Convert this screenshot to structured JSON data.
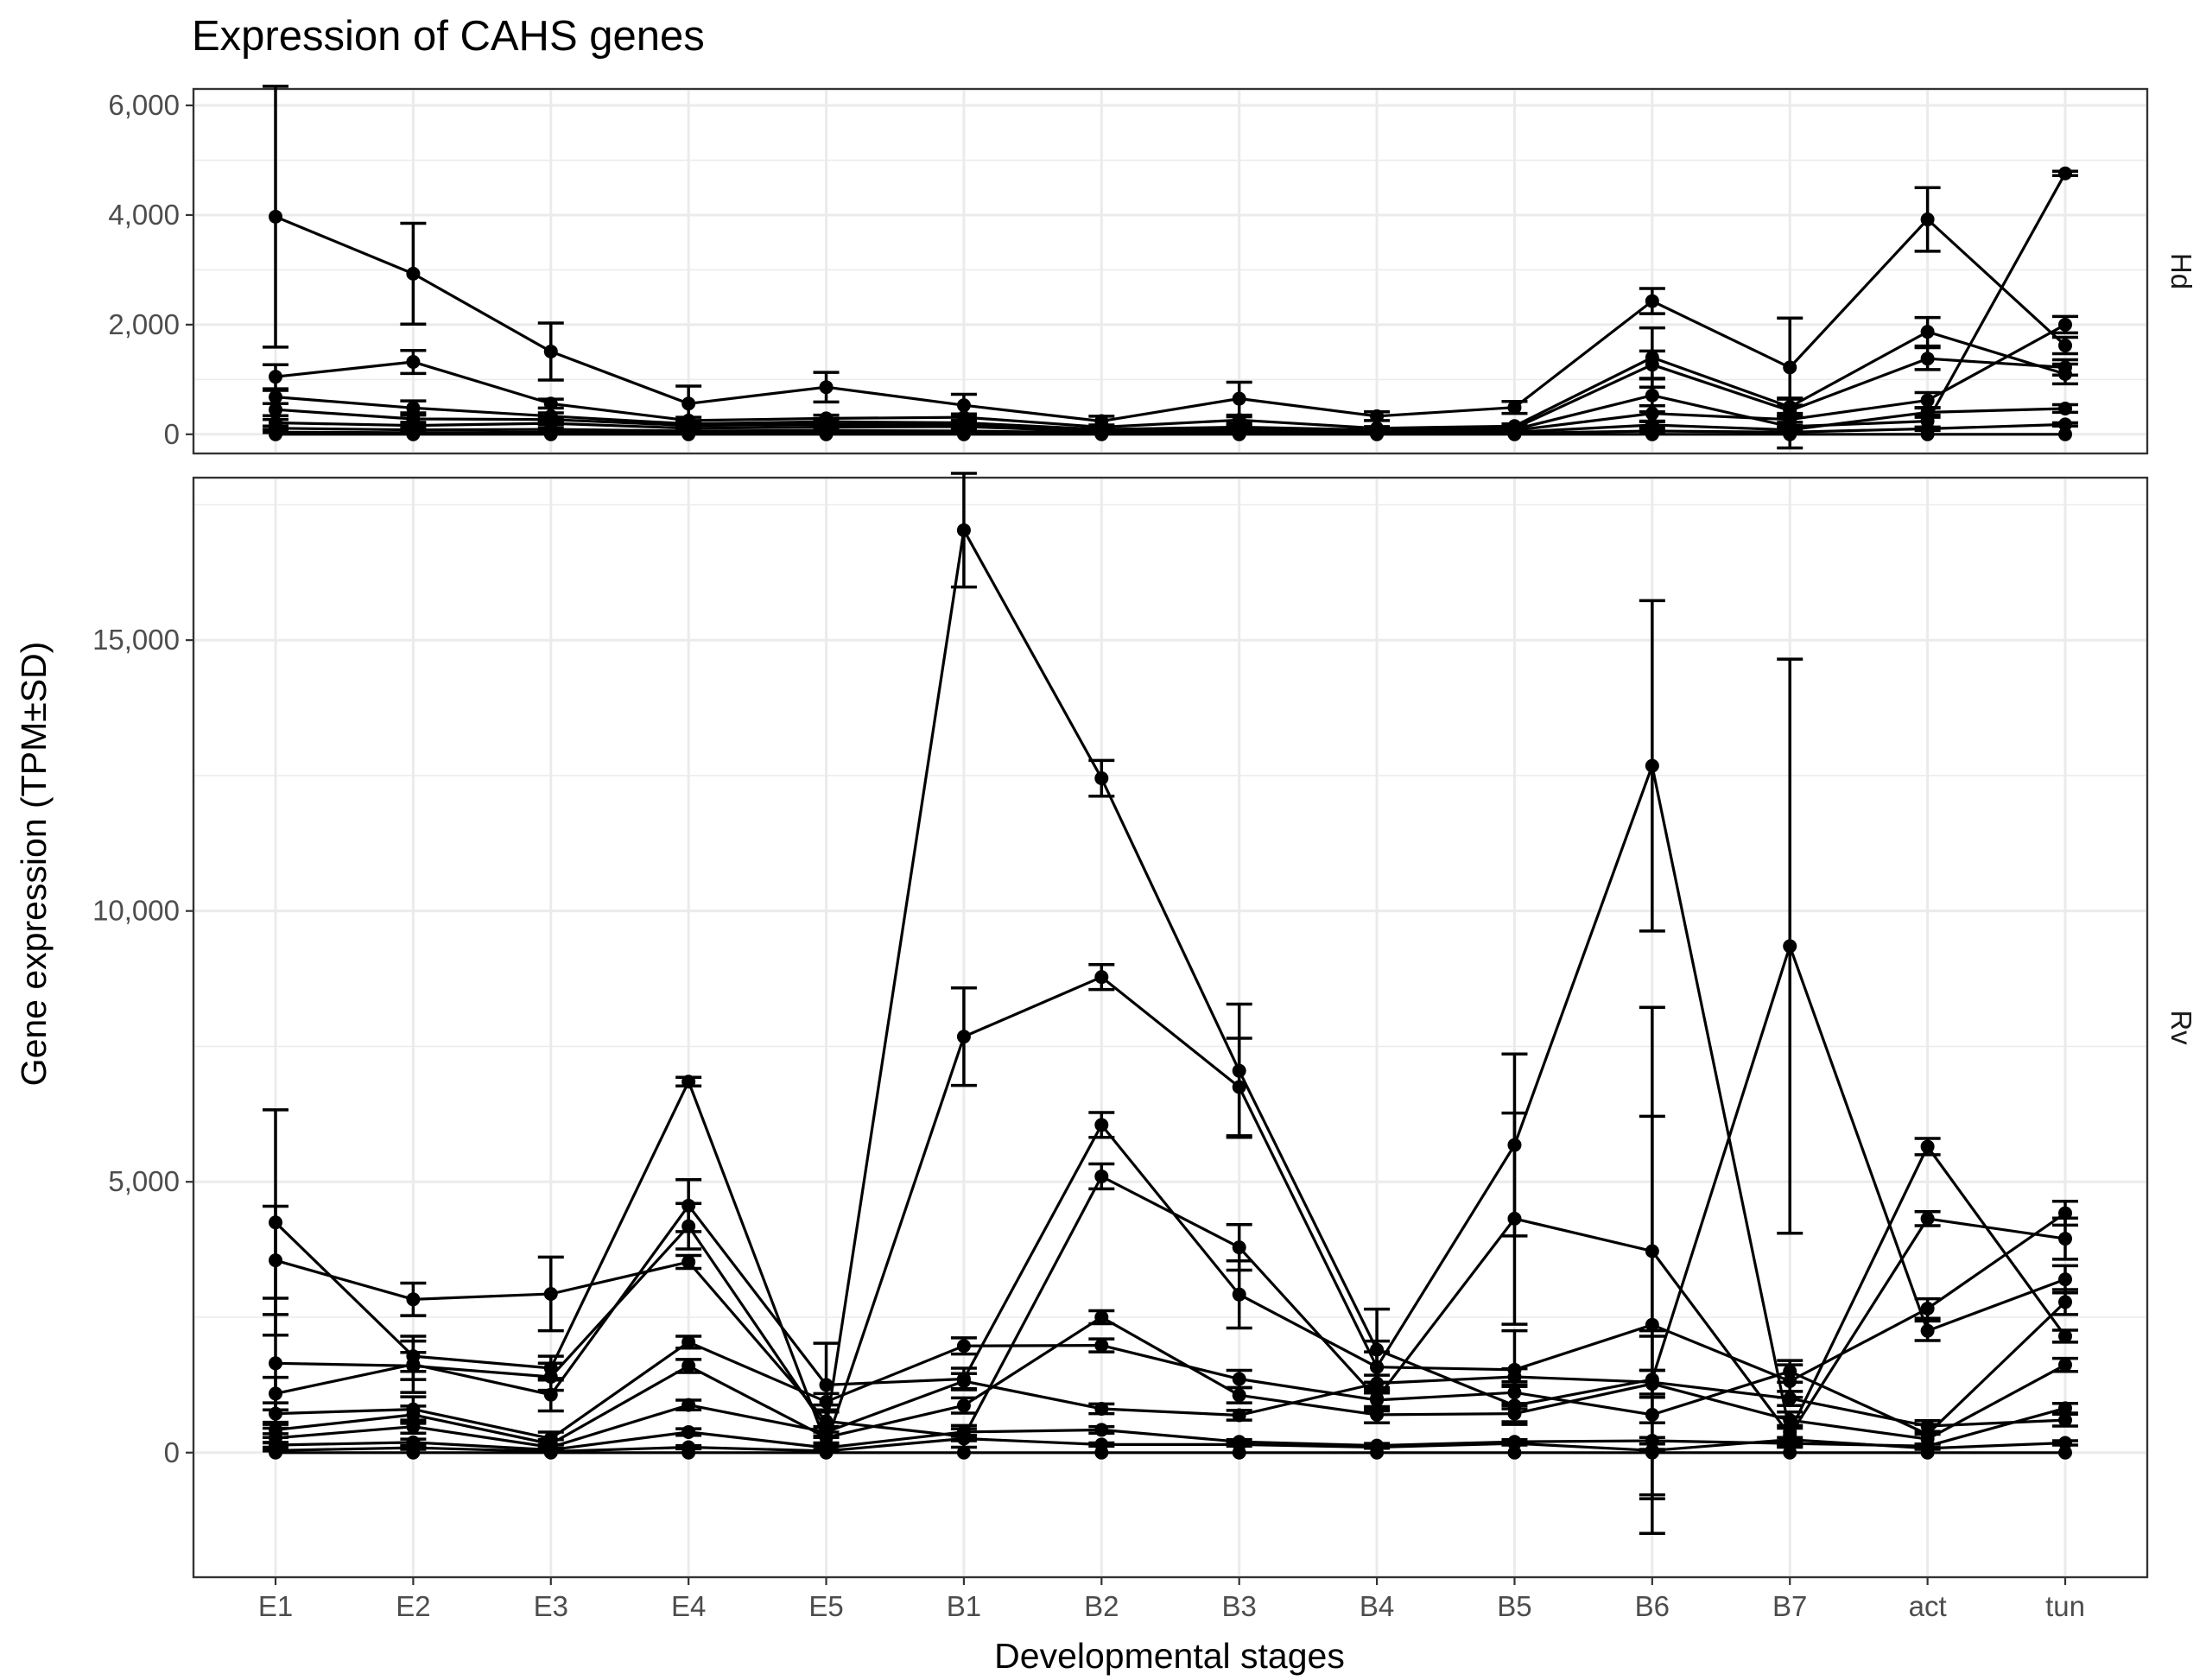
{
  "chart_data": {
    "type": "line",
    "title": "Expression of CAHS genes",
    "xlabel": "Developmental stages",
    "ylabel": "Gene expression (TPM±SD)",
    "categories": [
      "E1",
      "E2",
      "E3",
      "E4",
      "E5",
      "B1",
      "B2",
      "B3",
      "B4",
      "B5",
      "B6",
      "B7",
      "act",
      "tun"
    ],
    "grid": true,
    "legend": "none",
    "facets": [
      {
        "id": "hd",
        "label": "Hd",
        "ylim": [
          -350,
          6300
        ],
        "yticks": [
          0,
          2000,
          4000,
          6000
        ],
        "ytick_labels": [
          "0",
          "2,000",
          "4,000",
          "6,000"
        ],
        "series": [
          {
            "values": [
              3970,
              2930,
              1510,
              560,
              860,
              530,
              240,
              650,
              330,
              490,
              2430,
              1220,
              3920,
              1620
            ],
            "sd": [
              2380,
              920,
              520,
              320,
              270,
              200,
              90,
              300,
              80,
              110,
              230,
              900,
              580,
              150
            ]
          },
          {
            "values": [
              1050,
              1320,
              560,
              250,
              290,
              310,
              130,
              260,
              110,
              150,
              1400,
              500,
              1870,
              1100
            ],
            "sd": [
              220,
              210,
              80,
              60,
              60,
              60,
              40,
              60,
              30,
              40,
              540,
              160,
              260,
              180
            ]
          },
          {
            "values": [
              680,
              480,
              330,
              190,
              230,
              210,
              90,
              130,
              80,
              110,
              1270,
              430,
              1380,
              1220
            ],
            "sd": [
              120,
              130,
              60,
              40,
              50,
              40,
              30,
              40,
              20,
              30,
              250,
              210,
              200,
              140
            ]
          },
          {
            "values": [
              450,
              280,
              270,
              160,
              180,
              170,
              70,
              110,
              60,
              90,
              710,
              140,
              240,
              4760
            ],
            "sd": [
              110,
              110,
              40,
              30,
              40,
              40,
              20,
              40,
              20,
              30,
              300,
              390,
              110,
              40
            ]
          },
          {
            "values": [
              210,
              160,
              200,
              110,
              130,
              140,
              50,
              80,
              50,
              70,
              380,
              270,
              620,
              2000
            ],
            "sd": [
              60,
              60,
              30,
              30,
              30,
              30,
              20,
              30,
              20,
              20,
              140,
              110,
              140,
              150
            ]
          },
          {
            "values": [
              110,
              80,
              90,
              60,
              70,
              60,
              30,
              40,
              30,
              40,
              170,
              80,
              400,
              470
            ],
            "sd": [
              30,
              30,
              20,
              20,
              20,
              20,
              10,
              20,
              10,
              10,
              60,
              40,
              90,
              70
            ]
          },
          {
            "values": [
              40,
              30,
              40,
              30,
              30,
              30,
              20,
              20,
              20,
              20,
              60,
              40,
              100,
              180
            ],
            "sd": [
              10,
              10,
              10,
              10,
              10,
              10,
              10,
              10,
              10,
              10,
              20,
              20,
              30,
              30
            ]
          },
          {
            "values": [
              0,
              0,
              0,
              0,
              0,
              0,
              0,
              0,
              0,
              0,
              0,
              0,
              0,
              0
            ],
            "sd": [
              0,
              0,
              0,
              0,
              0,
              0,
              0,
              0,
              0,
              0,
              0,
              0,
              0,
              0
            ]
          }
        ]
      },
      {
        "id": "rv",
        "label": "Rv",
        "ylim": [
          -2300,
          18000
        ],
        "yticks": [
          0,
          5000,
          10000,
          15000
        ],
        "ytick_labels": [
          "0",
          "5,000",
          "10,000",
          "15,000"
        ],
        "series": [
          {
            "values": [
              1650,
              1600,
              1400,
              4180,
              450,
              17030,
              12450,
              7050,
              1900,
              870,
              1350,
              9350,
              2250,
              3200
            ],
            "sd": [
              1200,
              250,
              250,
              420,
              300,
              1050,
              330,
              1230,
              750,
              350,
              800,
              5300,
              180,
              250
            ]
          },
          {
            "values": [
              4250,
              1780,
              1560,
              6850,
              160,
              7680,
              8780,
              6750,
              1580,
              5680,
              12680,
              380,
              5650,
              2150
            ],
            "sd": [
              2080,
              280,
              220,
              80,
              150,
              900,
              230,
              900,
              280,
              1680,
              3050,
              280,
              150,
              110
            ]
          },
          {
            "values": [
              3550,
              2830,
              2930,
              3520,
              580,
              300,
              5100,
              3790,
              1000,
              4320,
              3720,
              320,
              4320,
              3950
            ],
            "sd": [
              1000,
              300,
              680,
              120,
              300,
              200,
              230,
              420,
              200,
              1950,
              4500,
              180,
              130,
              380
            ]
          },
          {
            "values": [
              1090,
              1630,
              1070,
              4560,
              1250,
              1360,
              6050,
              2920,
              1580,
              1530,
              2360,
              1320,
              2660,
              4420
            ],
            "sd": [
              300,
              520,
              300,
              480,
              770,
              200,
              230,
              620,
              480,
              720,
              3850,
              300,
              180,
              220
            ]
          },
          {
            "values": [
              720,
              800,
              260,
              2040,
              940,
              1970,
              1980,
              1360,
              970,
              1110,
              700,
              1500,
              340,
              2780
            ],
            "sd": [
              200,
              230,
              120,
              110,
              150,
              150,
              120,
              160,
              200,
              200,
              1550,
              200,
              180,
              230
            ]
          },
          {
            "values": [
              420,
              700,
              160,
              1600,
              280,
              870,
              2500,
              1060,
              700,
              720,
              1270,
              600,
              250,
              1620
            ],
            "sd": [
              140,
              160,
              80,
              120,
              100,
              140,
              120,
              140,
              150,
              150,
              250,
              150,
              90,
              120
            ]
          },
          {
            "values": [
              270,
              480,
              100,
              880,
              380,
              1320,
              810,
              690,
              1280,
              1400,
              1300,
              1000,
              490,
              600
            ],
            "sd": [
              80,
              120,
              50,
              90,
              90,
              140,
              90,
              90,
              150,
              150,
              220,
              130,
              100,
              110
            ]
          },
          {
            "values": [
              140,
              190,
              50,
              380,
              90,
              380,
              420,
              200,
              130,
              200,
              220,
              170,
              120,
              820
            ],
            "sd": [
              40,
              60,
              30,
              60,
              30,
              60,
              60,
              40,
              40,
              40,
              60,
              50,
              40,
              90
            ]
          },
          {
            "values": [
              40,
              90,
              20,
              100,
              30,
              260,
              150,
              150,
              100,
              170,
              40,
              240,
              80,
              180
            ],
            "sd": [
              10,
              30,
              10,
              30,
              10,
              40,
              30,
              30,
              20,
              30,
              20,
              40,
              20,
              40
            ]
          },
          {
            "values": [
              0,
              0,
              0,
              0,
              0,
              0,
              0,
              0,
              0,
              0,
              0,
              0,
              0,
              0
            ],
            "sd": [
              0,
              0,
              0,
              0,
              0,
              0,
              0,
              0,
              0,
              0,
              0,
              0,
              0,
              0
            ]
          }
        ]
      }
    ]
  }
}
